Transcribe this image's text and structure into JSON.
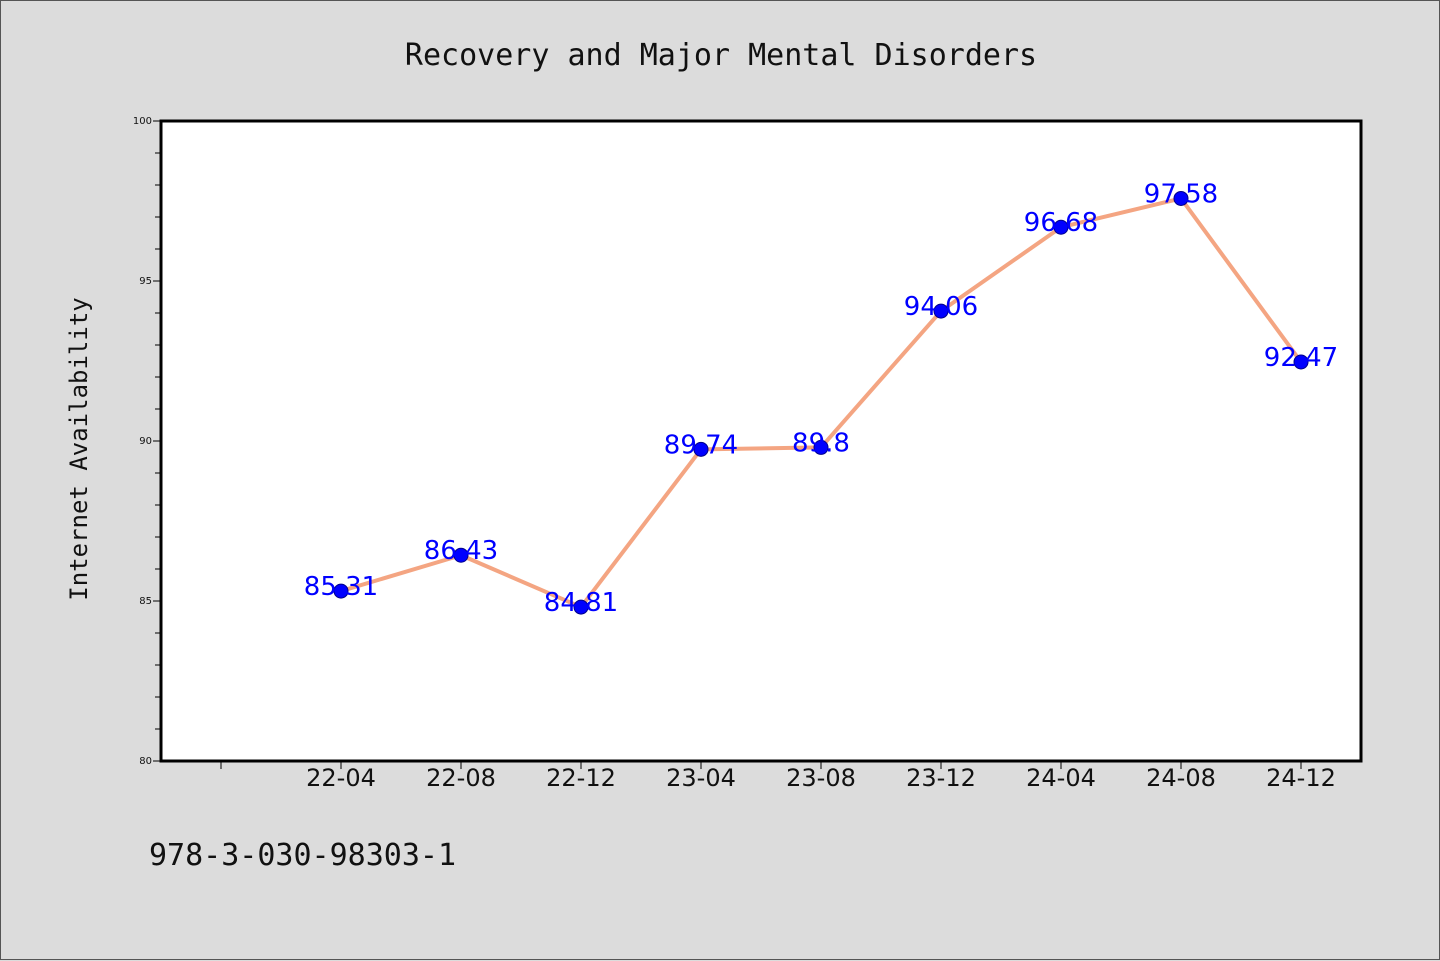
{
  "chart_data": {
    "type": "line",
    "title": "Recovery and Major Mental Disorders",
    "xlabel": "",
    "ylabel": "Internet Availability",
    "categories": [
      "22-04",
      "22-08",
      "22-12",
      "23-04",
      "23-08",
      "23-12",
      "24-04",
      "24-08",
      "24-12"
    ],
    "series": [
      {
        "values": [
          85.31,
          86.43,
          84.81,
          89.74,
          89.8,
          94.06,
          96.68,
          97.58,
          92.47
        ],
        "labels": [
          "85.31",
          "86.43",
          "84.81",
          "89.74",
          "89.8",
          "94.06",
          "96.68",
          "97.58",
          "92.47"
        ]
      }
    ],
    "ylim": [
      80,
      100
    ],
    "yticks": [
      "80",
      "85",
      "90",
      "95",
      "100"
    ],
    "grid": false,
    "legend": "none"
  },
  "caption": "978-3-030-98303-1",
  "colors": {
    "background": "#dcdcdc",
    "plot_background": "#ffffff",
    "line": "#f4a582",
    "marker": "#0000ff",
    "data_label": "#0000ff"
  }
}
